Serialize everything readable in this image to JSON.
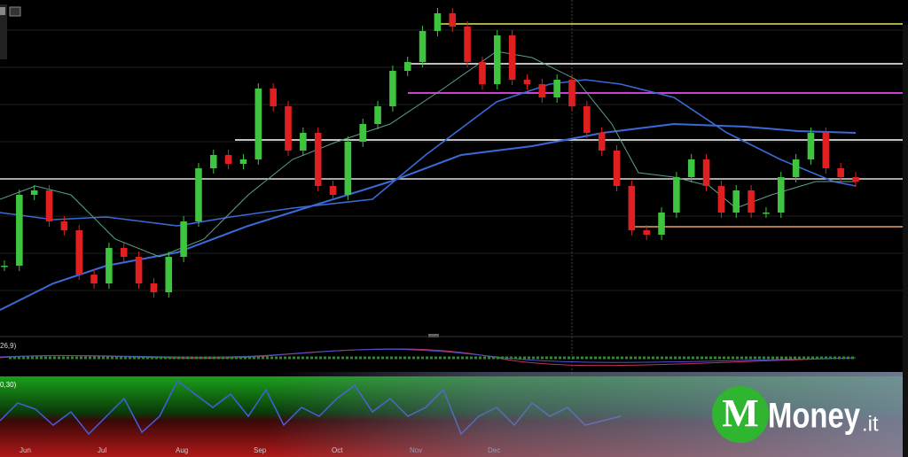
{
  "chart_data": {
    "type": "candlestick",
    "months": [
      "Jun",
      "Jul",
      "Aug",
      "Sep",
      "Oct",
      "Nov",
      "Dec"
    ],
    "close": [
      75,
      155,
      160,
      125,
      115,
      65,
      55,
      95,
      85,
      55,
      45,
      85,
      125,
      185,
      200,
      190,
      195,
      275,
      255,
      205,
      225,
      165,
      155,
      215,
      235,
      255,
      295,
      305,
      340,
      360,
      345,
      305,
      280,
      335,
      285,
      280,
      265,
      285,
      255,
      225,
      205,
      165,
      115,
      110,
      135,
      175,
      195,
      165,
      135,
      160,
      135,
      135,
      175,
      195,
      225,
      185,
      175,
      170
    ],
    "up_color": "#3ec43e",
    "down_color": "#e02020",
    "levels": [
      {
        "value": 348,
        "color": "#e6e65a"
      },
      {
        "value": 303,
        "color": "#ffffff"
      },
      {
        "value": 270,
        "color": "#d040d0"
      },
      {
        "value": 217,
        "color": "#ffffff"
      },
      {
        "value": 173,
        "color": "#dddddd"
      },
      {
        "value": 119,
        "color": "#f0a060"
      }
    ],
    "indicator_labels": [
      "26,9)",
      "0,30)"
    ]
  },
  "logo": {
    "name": "Money",
    "suffix": ".it"
  }
}
